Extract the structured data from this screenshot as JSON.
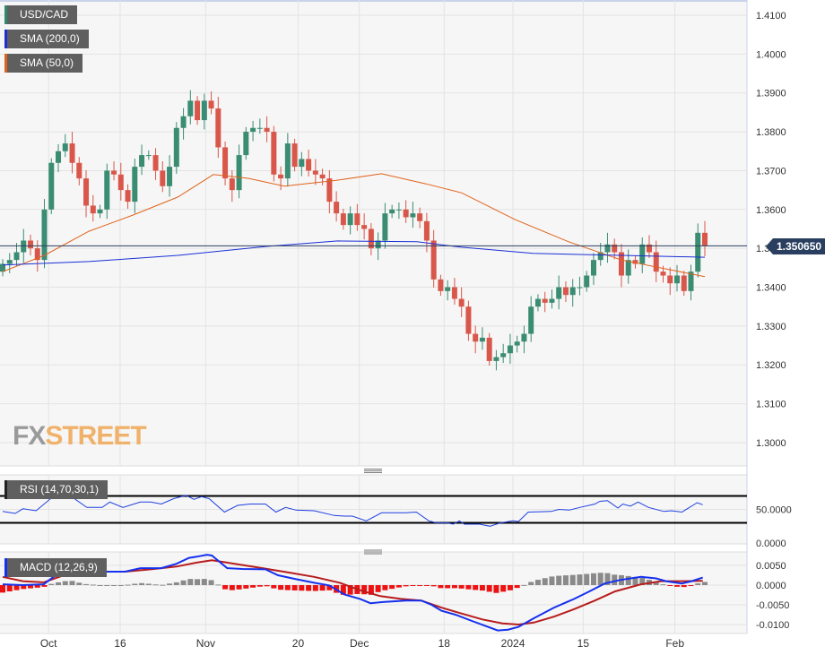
{
  "legend": {
    "symbol": "USD/CAD",
    "sma200": "SMA (200,0)",
    "sma50": "SMA (50,0)",
    "rsi": "RSI (14,70,30,1)",
    "macd": "MACD (12,26,9)"
  },
  "last_price": "1.350650",
  "logo": {
    "fx": "FX",
    "street": "STREET"
  },
  "colors": {
    "up": "#3a8c72",
    "down": "#d9574a",
    "sma200": "#1a2fd6",
    "sma50": "#e0631a",
    "rsi": "#1f3fe0",
    "macd": "#1530ee",
    "signal": "#b81c1c",
    "hist_pos": "#8a8a8a",
    "hist_neg": "#ee1111"
  },
  "chart_data": [
    {
      "type": "candlestick",
      "title": "USD/CAD",
      "ylim": [
        1.295,
        1.413
      ],
      "yticks": [
        "1.4100",
        "1.4000",
        "1.3900",
        "1.3800",
        "1.3700",
        "1.3600",
        "1.3500",
        "1.3400",
        "1.3300",
        "1.3200",
        "1.3100",
        "1.3000"
      ],
      "xticks": [
        {
          "label": "Oct",
          "idx": 6.6
        },
        {
          "label": "16",
          "idx": 16.9
        },
        {
          "label": "Nov",
          "idx": 29.2
        },
        {
          "label": "20",
          "idx": 42.5
        },
        {
          "label": "Dec",
          "idx": 51.3
        },
        {
          "label": "18",
          "idx": 63.5
        },
        {
          "label": "2024",
          "idx": 73.4
        },
        {
          "label": "15",
          "idx": 83.5
        },
        {
          "label": "Feb",
          "idx": 96.7
        }
      ],
      "closes": [
        1.346,
        1.347,
        1.349,
        1.352,
        1.35,
        1.347,
        1.36,
        1.372,
        1.375,
        1.377,
        1.372,
        1.368,
        1.361,
        1.359,
        1.36,
        1.37,
        1.369,
        1.365,
        1.362,
        1.371,
        1.374,
        1.374,
        1.37,
        1.366,
        1.371,
        1.381,
        1.384,
        1.388,
        1.383,
        1.388,
        1.386,
        1.376,
        1.368,
        1.365,
        1.374,
        1.38,
        1.381,
        1.381,
        1.38,
        1.369,
        1.368,
        1.377,
        1.371,
        1.373,
        1.37,
        1.369,
        1.368,
        1.362,
        1.359,
        1.356,
        1.359,
        1.356,
        1.355,
        1.35,
        1.352,
        1.359,
        1.36,
        1.36,
        1.358,
        1.359,
        1.357,
        1.352,
        1.342,
        1.339,
        1.34,
        1.337,
        1.335,
        1.328,
        1.326,
        1.327,
        1.321,
        1.322,
        1.323,
        1.325,
        1.326,
        1.328,
        1.335,
        1.337,
        1.336,
        1.337,
        1.34,
        1.338,
        1.34,
        1.34,
        1.343,
        1.347,
        1.349,
        1.351,
        1.349,
        1.343,
        1.347,
        1.346,
        1.351,
        1.349,
        1.344,
        1.343,
        1.341,
        1.343,
        1.339,
        1.344,
        1.354,
        1.35065
      ],
      "sma50": [
        [
          0,
          1.344
        ],
        [
          6,
          1.3482
        ],
        [
          12.4,
          1.3544
        ],
        [
          18.8,
          1.3586
        ],
        [
          25.2,
          1.3632
        ],
        [
          30.3,
          1.369
        ],
        [
          35.4,
          1.368
        ],
        [
          40.5,
          1.366
        ],
        [
          48,
          1.3675
        ],
        [
          54.5,
          1.3692
        ],
        [
          60.9,
          1.3666
        ],
        [
          66,
          1.3643
        ],
        [
          73.7,
          1.3574
        ],
        [
          81.4,
          1.3517
        ],
        [
          89,
          1.347
        ],
        [
          95.4,
          1.3447
        ],
        [
          101,
          1.3427
        ]
      ],
      "sma200": [
        [
          0,
          1.3457
        ],
        [
          12.4,
          1.3466
        ],
        [
          25.2,
          1.3482
        ],
        [
          38,
          1.3505
        ],
        [
          48.2,
          1.3519
        ],
        [
          59.6,
          1.3517
        ],
        [
          66,
          1.3503
        ],
        [
          76.3,
          1.3487
        ],
        [
          89,
          1.3482
        ],
        [
          101,
          1.3477
        ]
      ]
    },
    {
      "type": "line",
      "title": "RSI (14,70,30,1)",
      "ylim": [
        0,
        100
      ],
      "levels": [
        70,
        30
      ],
      "yticks": [
        "50.0000",
        "0.0000"
      ],
      "values": [
        [
          0,
          47
        ],
        [
          1.8,
          44
        ],
        [
          2.9,
          51
        ],
        [
          4.8,
          48
        ],
        [
          7,
          67
        ],
        [
          8.8,
          72
        ],
        [
          10.3,
          66
        ],
        [
          12.1,
          53
        ],
        [
          14.3,
          53
        ],
        [
          15.4,
          61
        ],
        [
          17.3,
          53
        ],
        [
          19.8,
          61
        ],
        [
          21.3,
          61
        ],
        [
          22.8,
          58
        ],
        [
          24.6,
          66
        ],
        [
          26.4,
          71
        ],
        [
          27.5,
          65
        ],
        [
          28.6,
          69
        ],
        [
          29.7,
          66
        ],
        [
          31.9,
          46
        ],
        [
          33.8,
          56
        ],
        [
          35.6,
          58
        ],
        [
          37.8,
          58
        ],
        [
          39.3,
          46
        ],
        [
          40.7,
          53
        ],
        [
          42.2,
          49
        ],
        [
          44.8,
          48
        ],
        [
          47.7,
          41
        ],
        [
          49.2,
          40
        ],
        [
          50.3,
          40
        ],
        [
          52.3,
          33
        ],
        [
          54.5,
          45
        ],
        [
          58,
          45
        ],
        [
          59.5,
          46
        ],
        [
          61.3,
          33
        ],
        [
          62.4,
          30
        ],
        [
          63.9,
          30
        ],
        [
          64.8,
          28
        ],
        [
          65.7,
          33
        ],
        [
          66.4,
          28
        ],
        [
          68.6,
          28
        ],
        [
          70.1,
          25
        ],
        [
          71.6,
          30
        ],
        [
          73.4,
          33
        ],
        [
          74.2,
          32
        ],
        [
          75.6,
          46
        ],
        [
          78.9,
          47
        ],
        [
          80,
          50
        ],
        [
          81.5,
          49
        ],
        [
          83,
          53
        ],
        [
          85.2,
          58
        ],
        [
          85.9,
          62
        ],
        [
          87,
          63
        ],
        [
          88.5,
          52
        ],
        [
          89.2,
          58
        ],
        [
          90.3,
          55
        ],
        [
          91.4,
          61
        ],
        [
          92.9,
          53
        ],
        [
          95.1,
          47
        ],
        [
          96.2,
          48
        ],
        [
          97.7,
          46
        ],
        [
          99.9,
          60
        ],
        [
          100.7,
          57
        ]
      ]
    },
    {
      "type": "line",
      "title": "MACD (12,26,9)",
      "ylim": [
        -0.0125,
        0.0085
      ],
      "yticks": [
        "0.0050",
        "0.0000",
        "-0.0050",
        "-0.0100"
      ],
      "macd": [
        [
          0,
          0.0002
        ],
        [
          2.9,
          0
        ],
        [
          5.9,
          0.0002
        ],
        [
          7.3,
          0.0021
        ],
        [
          9.5,
          0.004
        ],
        [
          11.7,
          0.0037
        ],
        [
          13.9,
          0.0034
        ],
        [
          17.6,
          0.0034
        ],
        [
          19.8,
          0.0043
        ],
        [
          22.8,
          0.0043
        ],
        [
          25,
          0.0054
        ],
        [
          26.8,
          0.0069
        ],
        [
          27.9,
          0.0072
        ],
        [
          29.4,
          0.0077
        ],
        [
          30.1,
          0.0075
        ],
        [
          32.3,
          0.0043
        ],
        [
          34.5,
          0.0041
        ],
        [
          37.8,
          0.004
        ],
        [
          39.6,
          0.0025
        ],
        [
          42.2,
          0.0015
        ],
        [
          44.8,
          0.0006
        ],
        [
          47,
          -0.0001
        ],
        [
          49.2,
          -0.0024
        ],
        [
          51.4,
          -0.0035
        ],
        [
          52.9,
          -0.0046
        ],
        [
          54.7,
          -0.0043
        ],
        [
          58,
          -0.0039
        ],
        [
          60.2,
          -0.0039
        ],
        [
          61.7,
          -0.005
        ],
        [
          63.1,
          -0.0065
        ],
        [
          65.3,
          -0.0076
        ],
        [
          67.5,
          -0.0091
        ],
        [
          69.8,
          -0.0106
        ],
        [
          71.2,
          -0.0115
        ],
        [
          72.7,
          -0.0113
        ],
        [
          74.2,
          -0.0106
        ],
        [
          76.4,
          -0.0084
        ],
        [
          79.3,
          -0.0057
        ],
        [
          82.2,
          -0.0035
        ],
        [
          84.4,
          -0.0016
        ],
        [
          86.6,
          0.0004
        ],
        [
          88.8,
          0.0013
        ],
        [
          91.8,
          0.0021
        ],
        [
          94,
          0.0017
        ],
        [
          95.4,
          0.001
        ],
        [
          97.7,
          0.0004
        ],
        [
          99.1,
          0.001
        ],
        [
          100.7,
          0.0019
        ]
      ],
      "signal": [
        [
          0,
          0.0021
        ],
        [
          2.9,
          0.001
        ],
        [
          5.9,
          0.0007
        ],
        [
          8.8,
          0.0025
        ],
        [
          11.7,
          0.0034
        ],
        [
          17.6,
          0.0034
        ],
        [
          21.3,
          0.004
        ],
        [
          25,
          0.0047
        ],
        [
          27.9,
          0.0057
        ],
        [
          30.1,
          0.0063
        ],
        [
          32.3,
          0.0057
        ],
        [
          34.5,
          0.0051
        ],
        [
          37.4,
          0.0043
        ],
        [
          41.1,
          0.0032
        ],
        [
          44.8,
          0.0021
        ],
        [
          48.5,
          0.0006
        ],
        [
          51.4,
          -0.0013
        ],
        [
          54.3,
          -0.0028
        ],
        [
          57.3,
          -0.0035
        ],
        [
          60.2,
          -0.0039
        ],
        [
          63.1,
          -0.0057
        ],
        [
          66,
          -0.0072
        ],
        [
          69,
          -0.0087
        ],
        [
          71.9,
          -0.0097
        ],
        [
          74.2,
          -0.01
        ],
        [
          76.4,
          -0.0095
        ],
        [
          79.3,
          -0.008
        ],
        [
          82.2,
          -0.0061
        ],
        [
          85.2,
          -0.0039
        ],
        [
          88.1,
          -0.0016
        ],
        [
          91.8,
          0.0002
        ],
        [
          94.7,
          0.001
        ],
        [
          97.7,
          0.001
        ],
        [
          100.7,
          0.0011
        ]
      ]
    }
  ]
}
